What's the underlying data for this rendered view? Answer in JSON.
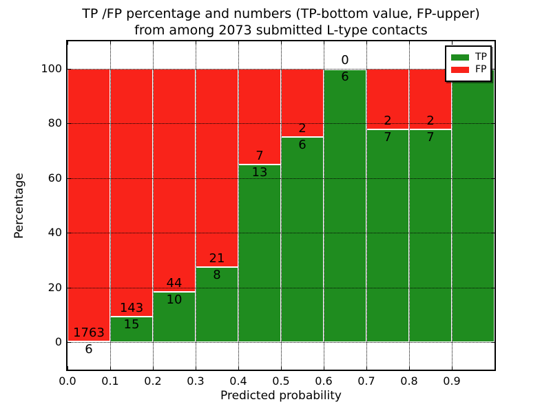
{
  "chart_data": {
    "type": "bar",
    "stacked": true,
    "title_line1": "TP /FP percentage and numbers (TP-bottom value, FP-upper)",
    "title_line2": "from among 2073 submitted L-type contacts",
    "xlabel": "Predicted probability",
    "ylabel": "Percentage",
    "total_submitted_contacts": 2073,
    "bin_edges": [
      0.0,
      0.1,
      0.2,
      0.3,
      0.4,
      0.5,
      0.6,
      0.7,
      0.8,
      0.9,
      1.0
    ],
    "categories": [
      "0.0-0.1",
      "0.1-0.2",
      "0.2-0.3",
      "0.3-0.4",
      "0.4-0.5",
      "0.5-0.6",
      "0.6-0.7",
      "0.7-0.8",
      "0.8-0.9",
      "0.9-1.0"
    ],
    "series": [
      {
        "name": "TP",
        "color": "#1f8c1f",
        "counts": [
          6,
          15,
          10,
          8,
          13,
          6,
          6,
          7,
          7,
          11
        ]
      },
      {
        "name": "FP",
        "color": "#f9231a",
        "counts": [
          1763,
          143,
          44,
          21,
          7,
          2,
          0,
          2,
          2,
          0
        ]
      }
    ],
    "tp_percent": [
      0.34,
      9.49,
      18.52,
      27.59,
      65.0,
      75.0,
      100.0,
      77.78,
      77.78,
      100.0
    ],
    "x_ticks": [
      "0.0",
      "0.1",
      "0.2",
      "0.3",
      "0.4",
      "0.5",
      "0.6",
      "0.7",
      "0.8",
      "0.9"
    ],
    "y_ticks": [
      "0",
      "20",
      "40",
      "60",
      "80",
      "100"
    ],
    "xlim": [
      0.0,
      1.0
    ],
    "ylim": [
      -10,
      110
    ],
    "grid_style": "dotted",
    "legend": {
      "position": "upper-right",
      "entries": [
        {
          "label": "TP",
          "color": "#1f8c1f"
        },
        {
          "label": "FP",
          "color": "#f9231a"
        }
      ]
    }
  }
}
